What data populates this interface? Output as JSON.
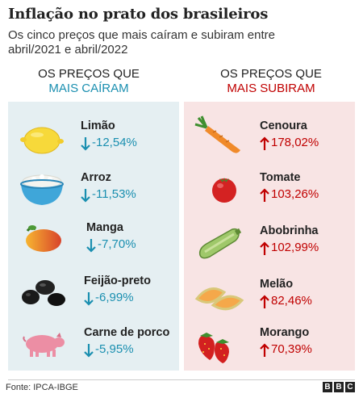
{
  "header": {
    "title": "Inflação no prato dos brasileiros",
    "subtitle": "Os cinco preços que mais caíram e subiram entre abril/2021 e abril/2022"
  },
  "left_column": {
    "heading_line1": "OS PREÇOS QUE",
    "heading_line2": "MAIS CAÍRAM",
    "accent_color": "#1a8fb0",
    "items": [
      {
        "name": "Limão",
        "value": "-12,54%",
        "icon": "lemon-icon"
      },
      {
        "name": "Arroz",
        "value": "-11,53%",
        "icon": "rice-bowl-icon"
      },
      {
        "name": "Manga",
        "value": "-7,70%",
        "icon": "mango-icon"
      },
      {
        "name": "Feijão-preto",
        "value": "-6,99%",
        "icon": "black-beans-icon"
      },
      {
        "name": "Carne de porco",
        "value": "-5,95%",
        "icon": "pig-icon"
      }
    ]
  },
  "right_column": {
    "heading_line1": "OS PREÇOS QUE",
    "heading_line2": "MAIS SUBIRAM",
    "accent_color": "#c00000",
    "items": [
      {
        "name": "Cenoura",
        "value": "178,02%",
        "icon": "carrot-icon"
      },
      {
        "name": "Tomate",
        "value": "103,26%",
        "icon": "tomato-icon"
      },
      {
        "name": "Abobrinha",
        "value": "102,99%",
        "icon": "zucchini-icon"
      },
      {
        "name": "Melão",
        "value": "82,46%",
        "icon": "melon-icon"
      },
      {
        "name": "Morango",
        "value": "70,39%",
        "icon": "strawberry-icon"
      }
    ]
  },
  "footer": {
    "source": "Fonte: IPCA-IBGE",
    "logo": [
      "B",
      "B",
      "C"
    ]
  }
}
